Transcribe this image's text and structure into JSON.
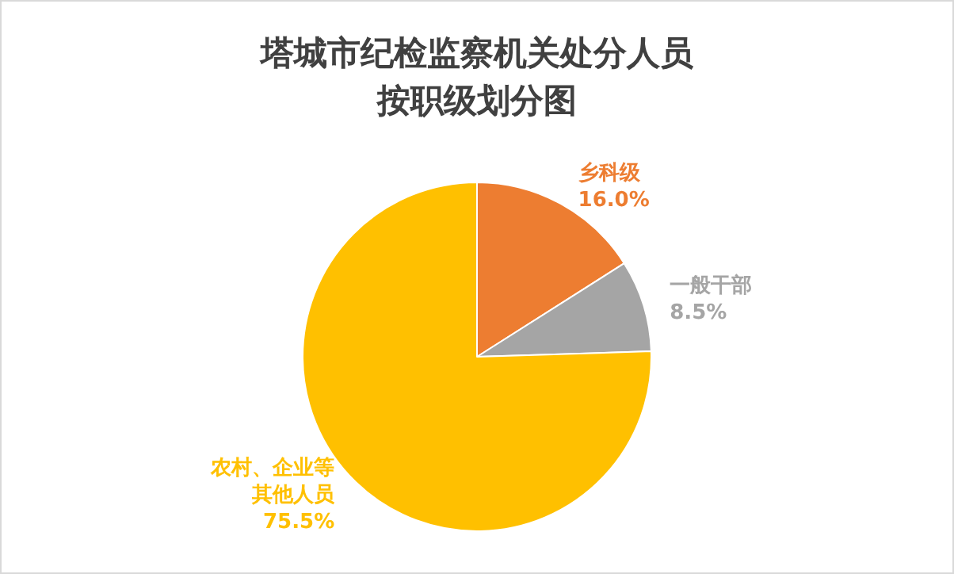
{
  "chart_data": {
    "type": "pie",
    "title": "塔城市纪检监察机关处分人员按职级划分图",
    "categories": [
      "乡科级",
      "一般干部",
      "农村、企业等其他人员"
    ],
    "values": [
      16.0,
      8.5,
      75.5
    ],
    "value_labels": [
      "16.0%",
      "8.5%",
      "75.5%"
    ],
    "colors": [
      "#ed7d31",
      "#a5a5a5",
      "#ffc000"
    ],
    "legend": false
  }
}
